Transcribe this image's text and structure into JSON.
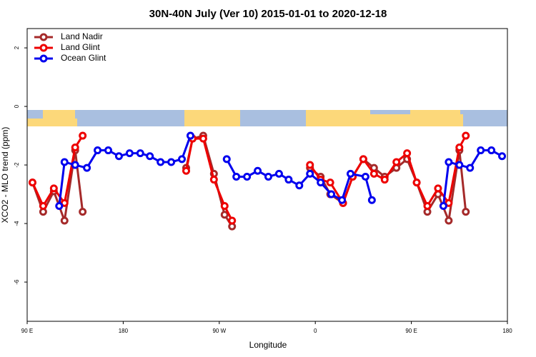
{
  "chart_data": {
    "type": "line",
    "title": "30N-40N July (Ver 10)   2015-01-01 to 2020-12-18",
    "x_label": "Longitude",
    "y_label": "XCO2 - MLO trend (ppm)",
    "xlim": [
      90,
      540
    ],
    "xticks": [
      {
        "value": 90,
        "label": "90 E"
      },
      180,
      {
        "value": 270,
        "label": "90 W"
      },
      {
        "value": 360,
        "label": "0"
      },
      {
        "value": 450,
        "label": "90 E"
      },
      {
        "value": 540,
        "label": "180"
      }
    ],
    "ylim": [
      -7.34,
      2.66
    ],
    "yticks": [
      2,
      0,
      -2,
      -4,
      -6
    ],
    "grid": false,
    "legend": "topleft",
    "series": [
      {
        "name": "Land Nadir",
        "color": "#a52a2a",
        "x": [
          95,
          105,
          115,
          125,
          135,
          142,
          null,
          239,
          245,
          255,
          265,
          275,
          282,
          null,
          355,
          365,
          374,
          386,
          395,
          405,
          415,
          425,
          436,
          446,
          455,
          465,
          475,
          485,
          495,
          501
        ],
        "values": [
          -2.6,
          -3.6,
          -2.9,
          -3.9,
          -1.5,
          -3.6,
          null,
          -2.1,
          -1.1,
          -1.0,
          -2.3,
          -3.7,
          -4.1,
          null,
          -2.1,
          -2.4,
          -3.0,
          -3.3,
          -2.4,
          -1.8,
          -2.1,
          -2.4,
          -2.1,
          -1.8,
          -2.6,
          -3.6,
          -3.0,
          -3.9,
          -1.5,
          -3.6
        ]
      },
      {
        "name": "Land Glint",
        "color": "#ee0000",
        "x": [
          95,
          105,
          115,
          125,
          135,
          142,
          null,
          239,
          245,
          255,
          265,
          275,
          282,
          null,
          355,
          365,
          374,
          386,
          395,
          405,
          415,
          425,
          436,
          446,
          455,
          465,
          475,
          485,
          495,
          501
        ],
        "values": [
          -2.6,
          -3.4,
          -2.8,
          -3.3,
          -1.4,
          -1.0,
          null,
          -2.2,
          -1.1,
          -1.1,
          -2.5,
          -3.4,
          -3.9,
          null,
          -2.0,
          -2.5,
          -2.6,
          -3.3,
          -2.4,
          -1.8,
          -2.3,
          -2.5,
          -1.9,
          -1.6,
          -2.6,
          -3.4,
          -2.8,
          -3.3,
          -1.4,
          -1.0
        ]
      },
      {
        "name": "Ocean Glint",
        "color": "#0000ee",
        "x": [
          120,
          125,
          135,
          146,
          156,
          166,
          176,
          186,
          196,
          205,
          215,
          225,
          235,
          243,
          null,
          277,
          286,
          296,
          306,
          316,
          326,
          335,
          345,
          355,
          365,
          375,
          385,
          393,
          407,
          413,
          null,
          480,
          485,
          495,
          505,
          515,
          525,
          535
        ],
        "values": [
          -3.4,
          -1.9,
          -2.0,
          -2.1,
          -1.5,
          -1.5,
          -1.7,
          -1.6,
          -1.6,
          -1.7,
          -1.9,
          -1.9,
          -1.8,
          -1.0,
          null,
          -1.8,
          -2.4,
          -2.4,
          -2.2,
          -2.4,
          -2.3,
          -2.5,
          -2.7,
          -2.3,
          -2.6,
          -3.0,
          -3.2,
          -2.3,
          -2.4,
          -3.2,
          null,
          -3.4,
          -1.9,
          -2.0,
          -2.1,
          -1.5,
          -1.5,
          -1.7
        ]
      }
    ]
  }
}
